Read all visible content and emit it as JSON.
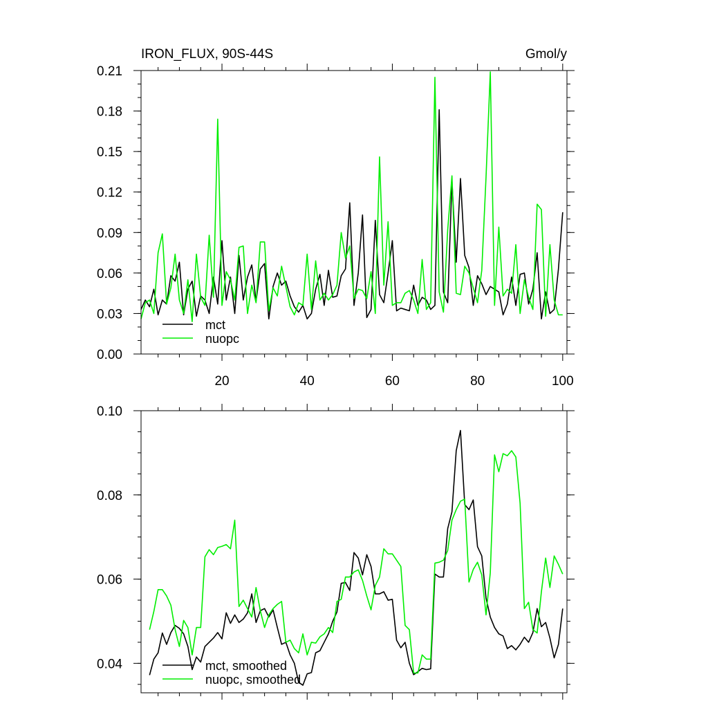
{
  "colors": {
    "mct": "#000000",
    "nuopc": "#00ee00",
    "axes": "#000000",
    "background": "#ffffff"
  },
  "chart_data": [
    {
      "type": "line",
      "title": "IRON_FLUX, 90S-44S",
      "units": "Gmol/y",
      "xlabel": "",
      "ylabel": "",
      "xlim": [
        1,
        101
      ],
      "ylim": [
        0,
        0.21
      ],
      "x_ticks": [
        20,
        40,
        60,
        80,
        100
      ],
      "y_ticks": [
        0.0,
        0.03,
        0.06,
        0.09,
        0.12,
        0.15,
        0.18,
        0.21
      ],
      "y_tick_labels": [
        "0.00",
        "0.03",
        "0.06",
        "0.09",
        "0.12",
        "0.15",
        "0.18",
        "0.21"
      ],
      "grid": false,
      "legend_position": "bottom-left",
      "x_start": 1,
      "series": [
        {
          "name": "mct",
          "color": "#000000",
          "values": [
            0.033,
            0.04,
            0.035,
            0.048,
            0.029,
            0.04,
            0.037,
            0.058,
            0.054,
            0.068,
            0.029,
            0.048,
            0.054,
            0.028,
            0.043,
            0.04,
            0.03,
            0.057,
            0.037,
            0.084,
            0.04,
            0.057,
            0.03,
            0.073,
            0.04,
            0.057,
            0.066,
            0.039,
            0.063,
            0.067,
            0.026,
            0.05,
            0.06,
            0.051,
            0.054,
            0.043,
            0.035,
            0.031,
            0.036,
            0.026,
            0.03,
            0.048,
            0.059,
            0.036,
            0.062,
            0.042,
            0.043,
            0.058,
            0.063,
            0.112,
            0.036,
            0.06,
            0.103,
            0.027,
            0.033,
            0.099,
            0.044,
            0.038,
            0.06,
            0.084,
            0.032,
            0.034,
            0.033,
            0.032,
            0.051,
            0.036,
            0.042,
            0.04,
            0.033,
            0.036,
            0.181,
            0.046,
            0.038,
            0.128,
            0.068,
            0.13,
            0.073,
            0.064,
            0.036,
            0.058,
            0.052,
            0.044,
            0.05,
            0.048,
            0.046,
            0.029,
            0.037,
            0.057,
            0.036,
            0.059,
            0.06,
            0.037,
            0.048,
            0.075,
            0.026,
            0.046,
            0.03,
            0.033,
            0.063,
            0.105
          ]
        },
        {
          "name": "nuopc",
          "color": "#00ee00",
          "values": [
            0.026,
            0.038,
            0.04,
            0.03,
            0.075,
            0.089,
            0.037,
            0.049,
            0.074,
            0.04,
            0.03,
            0.055,
            0.024,
            0.074,
            0.042,
            0.036,
            0.088,
            0.042,
            0.174,
            0.036,
            0.061,
            0.055,
            0.04,
            0.079,
            0.08,
            0.03,
            0.051,
            0.038,
            0.083,
            0.083,
            0.032,
            0.049,
            0.043,
            0.065,
            0.05,
            0.035,
            0.029,
            0.038,
            0.036,
            0.074,
            0.033,
            0.069,
            0.04,
            0.045,
            0.04,
            0.044,
            0.051,
            0.09,
            0.071,
            0.08,
            0.041,
            0.048,
            0.047,
            0.041,
            0.061,
            0.03,
            0.146,
            0.051,
            0.098,
            0.036,
            0.038,
            0.038,
            0.045,
            0.047,
            0.04,
            0.03,
            0.07,
            0.033,
            0.038,
            0.205,
            0.046,
            0.031,
            0.092,
            0.132,
            0.045,
            0.044,
            0.065,
            0.06,
            0.049,
            0.038,
            0.062,
            0.131,
            0.209,
            0.036,
            0.094,
            0.043,
            0.048,
            0.045,
            0.081,
            0.03,
            0.055,
            0.042,
            0.033,
            0.111,
            0.107,
            0.028,
            0.081,
            0.04,
            0.029,
            0.029
          ]
        }
      ]
    },
    {
      "type": "line",
      "title": "",
      "xlabel": "",
      "ylabel": "",
      "xlim": [
        1,
        101
      ],
      "ylim": [
        0.033,
        0.1
      ],
      "x_ticks": [
        20,
        40,
        60,
        80,
        100
      ],
      "y_ticks": [
        0.04,
        0.06,
        0.08,
        0.1
      ],
      "y_tick_labels": [
        "0.04",
        "0.06",
        "0.08",
        "0.10"
      ],
      "grid": false,
      "legend_position": "bottom-left",
      "x_start": 3,
      "series": [
        {
          "name": "mct, smoothed",
          "color": "#000000",
          "values": [
            0.0372,
            0.041,
            0.0425,
            0.0472,
            0.0445,
            0.0473,
            0.049,
            0.0483,
            0.047,
            0.044,
            0.0385,
            0.0415,
            0.0403,
            0.044,
            0.045,
            0.046,
            0.0473,
            0.0458,
            0.052,
            0.0495,
            0.0515,
            0.0497,
            0.0505,
            0.052,
            0.0565,
            0.0497,
            0.0525,
            0.053,
            0.051,
            0.0527,
            0.0485,
            0.0445,
            0.045,
            0.042,
            0.04,
            0.0355,
            0.0348,
            0.0375,
            0.0378,
            0.0425,
            0.043,
            0.045,
            0.047,
            0.05,
            0.0522,
            0.059,
            0.0592,
            0.0573,
            0.0663,
            0.065,
            0.061,
            0.0658,
            0.063,
            0.0565,
            0.0565,
            0.057,
            0.055,
            0.0552,
            0.0455,
            0.0437,
            0.045,
            0.04,
            0.0373,
            0.038,
            0.0388,
            0.0385,
            0.0387,
            0.0612,
            0.0605,
            0.0605,
            0.072,
            0.076,
            0.0905,
            0.0953,
            0.0777,
            0.0765,
            0.0788,
            0.0677,
            0.0655,
            0.0555,
            0.051,
            0.0485,
            0.047,
            0.0465,
            0.0435,
            0.0442,
            0.0432,
            0.0445,
            0.0462,
            0.045,
            0.0473,
            0.053,
            0.0487,
            0.0497,
            0.046,
            0.0413,
            0.0445,
            0.053
          ]
        },
        {
          "name": "nuopc, smoothed",
          "color": "#00ee00",
          "values": [
            0.048,
            0.0523,
            0.0575,
            0.0575,
            0.056,
            0.0538,
            0.048,
            0.044,
            0.0502,
            0.0485,
            0.042,
            0.0485,
            0.0485,
            0.0653,
            0.067,
            0.0658,
            0.0675,
            0.0678,
            0.0682,
            0.0672,
            0.074,
            0.0535,
            0.055,
            0.053,
            0.051,
            0.058,
            0.0525,
            0.0485,
            0.0515,
            0.053,
            0.054,
            0.0547,
            0.045,
            0.0455,
            0.0435,
            0.0425,
            0.047,
            0.042,
            0.045,
            0.0448,
            0.0463,
            0.047,
            0.0485,
            0.0473,
            0.0547,
            0.0552,
            0.0605,
            0.0605,
            0.0617,
            0.0622,
            0.0597,
            0.056,
            0.0527,
            0.0585,
            0.0605,
            0.0672,
            0.066,
            0.066,
            0.0645,
            0.063,
            0.049,
            0.048,
            0.0377,
            0.0377,
            0.042,
            0.041,
            0.041,
            0.0638,
            0.064,
            0.0645,
            0.0668,
            0.074,
            0.0765,
            0.0785,
            0.079,
            0.0593,
            0.0623,
            0.064,
            0.061,
            0.0515,
            0.0615,
            0.0895,
            0.0855,
            0.0898,
            0.0893,
            0.0905,
            0.089,
            0.078,
            0.053,
            0.0545,
            0.048,
            0.0472,
            0.057,
            0.065,
            0.058,
            0.0655,
            0.0635,
            0.0612
          ]
        }
      ]
    }
  ]
}
